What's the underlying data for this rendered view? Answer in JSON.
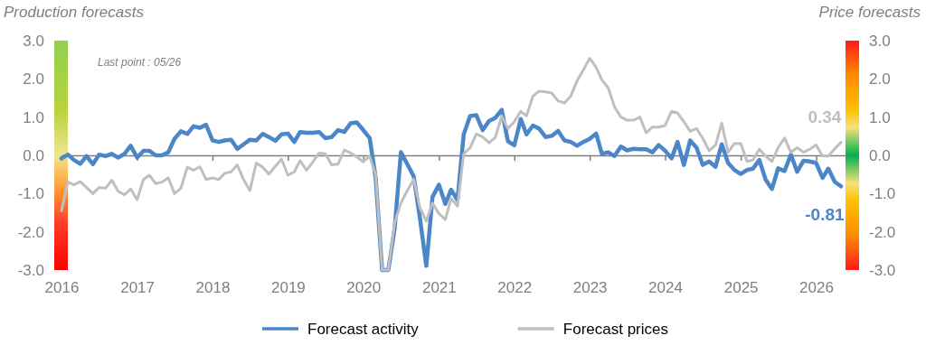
{
  "chart_data": {
    "type": "line",
    "ylabel": "Production forecasts",
    "y2label": "Price forecasts",
    "x": [
      "2016-01",
      "2016-02",
      "2016-03",
      "2016-04",
      "2016-05",
      "2016-06",
      "2016-07",
      "2016-08",
      "2016-09",
      "2016-10",
      "2016-11",
      "2016-12",
      "2017-01",
      "2017-02",
      "2017-03",
      "2017-04",
      "2017-05",
      "2017-06",
      "2017-07",
      "2017-08",
      "2017-09",
      "2017-10",
      "2017-11",
      "2017-12",
      "2018-01",
      "2018-02",
      "2018-03",
      "2018-04",
      "2018-05",
      "2018-06",
      "2018-07",
      "2018-08",
      "2018-09",
      "2018-10",
      "2018-11",
      "2018-12",
      "2019-01",
      "2019-02",
      "2019-03",
      "2019-04",
      "2019-05",
      "2019-06",
      "2019-07",
      "2019-08",
      "2019-09",
      "2019-10",
      "2019-11",
      "2019-12",
      "2020-01",
      "2020-02",
      "2020-03",
      "2020-04",
      "2020-05",
      "2020-06",
      "2020-07",
      "2020-08",
      "2020-09",
      "2020-10",
      "2020-11",
      "2020-12",
      "2021-01",
      "2021-02",
      "2021-03",
      "2021-04",
      "2021-05",
      "2021-06",
      "2021-07",
      "2021-08",
      "2021-09",
      "2021-10",
      "2021-11",
      "2021-12",
      "2022-01",
      "2022-02",
      "2022-03",
      "2022-04",
      "2022-05",
      "2022-06",
      "2022-07",
      "2022-08",
      "2022-09",
      "2022-10",
      "2022-11",
      "2022-12",
      "2023-01",
      "2023-02",
      "2023-03",
      "2023-04",
      "2023-05",
      "2023-06",
      "2023-07",
      "2023-08",
      "2023-09",
      "2023-10",
      "2023-11",
      "2023-12",
      "2024-01",
      "2024-02",
      "2024-03",
      "2024-04",
      "2024-05",
      "2024-06",
      "2024-07",
      "2024-08",
      "2024-09",
      "2024-10",
      "2024-11",
      "2024-12",
      "2025-01",
      "2025-02",
      "2025-03",
      "2025-04",
      "2025-05",
      "2025-06",
      "2025-07",
      "2025-08",
      "2025-09",
      "2025-10",
      "2025-11",
      "2025-12",
      "2026-01",
      "2026-02",
      "2026-03",
      "2026-04",
      "2026-05"
    ],
    "series": [
      {
        "name": "Forecast activity",
        "color": "#4a86c8",
        "values": [
          -0.08,
          0.02,
          -0.12,
          -0.22,
          -0.02,
          -0.23,
          0.02,
          -0.02,
          0.04,
          -0.06,
          0.04,
          0.25,
          -0.06,
          0.12,
          0.12,
          0.0,
          0.0,
          0.08,
          0.43,
          0.63,
          0.56,
          0.76,
          0.72,
          0.8,
          0.39,
          0.35,
          0.39,
          0.41,
          0.17,
          0.29,
          0.41,
          0.39,
          0.56,
          0.48,
          0.38,
          0.55,
          0.57,
          0.35,
          0.61,
          0.59,
          0.59,
          0.61,
          0.45,
          0.48,
          0.66,
          0.61,
          0.84,
          0.86,
          0.66,
          0.45,
          -0.6,
          -3.0,
          -3.0,
          -1.9,
          0.08,
          -0.23,
          -0.55,
          -1.64,
          -2.89,
          -1.09,
          -0.77,
          -1.27,
          -0.9,
          -1.17,
          0.55,
          1.03,
          1.05,
          0.66,
          0.9,
          0.98,
          1.19,
          0.37,
          0.26,
          0.95,
          0.55,
          0.78,
          0.7,
          0.48,
          0.51,
          0.64,
          0.39,
          0.35,
          0.25,
          0.35,
          0.43,
          0.57,
          0.04,
          0.08,
          -0.02,
          0.23,
          0.13,
          0.17,
          0.16,
          0.16,
          0.08,
          0.27,
          0.12,
          -0.08,
          0.35,
          -0.25,
          0.39,
          0.2,
          -0.25,
          -0.16,
          -0.3,
          0.29,
          -0.2,
          -0.38,
          -0.49,
          -0.38,
          -0.35,
          -0.12,
          -0.63,
          -0.88,
          -0.34,
          -0.41,
          0.02,
          -0.43,
          -0.14,
          -0.16,
          -0.2,
          -0.59,
          -0.35,
          -0.69,
          -0.81
        ]
      },
      {
        "name": "Forecast prices",
        "color": "#bfbfbf",
        "values": [
          -1.45,
          -0.7,
          -0.77,
          -0.69,
          -0.84,
          -1.0,
          -0.84,
          -0.86,
          -0.65,
          -0.94,
          -1.03,
          -0.88,
          -1.16,
          -0.63,
          -0.52,
          -0.74,
          -0.7,
          -0.59,
          -1.0,
          -0.86,
          -0.31,
          -0.39,
          -0.3,
          -0.63,
          -0.59,
          -0.63,
          -0.47,
          -0.43,
          -0.25,
          -0.64,
          -0.92,
          -0.2,
          -0.31,
          -0.49,
          -0.29,
          -0.1,
          -0.52,
          -0.43,
          -0.14,
          -0.39,
          -0.18,
          0.06,
          0.04,
          -0.25,
          -0.23,
          0.14,
          0.06,
          -0.04,
          -0.17,
          -0.02,
          -0.51,
          -3.0,
          -3.0,
          -1.76,
          -1.25,
          -0.92,
          -0.63,
          -1.37,
          -1.72,
          -1.25,
          -1.52,
          -1.68,
          -1.13,
          -1.33,
          0.04,
          0.2,
          0.56,
          0.48,
          0.33,
          0.47,
          1.03,
          0.7,
          0.88,
          1.15,
          1.03,
          1.55,
          1.68,
          1.66,
          1.63,
          1.42,
          1.37,
          1.55,
          1.95,
          2.23,
          2.54,
          2.3,
          1.97,
          1.76,
          1.27,
          1.0,
          0.92,
          0.92,
          1.0,
          0.59,
          0.74,
          0.74,
          0.78,
          1.15,
          1.11,
          0.88,
          0.63,
          0.7,
          0.45,
          0.12,
          0.27,
          0.84,
          0.08,
          0.31,
          0.31,
          -0.16,
          -0.12,
          0.16,
          -0.02,
          -0.16,
          0.2,
          0.45,
          0.08,
          0.2,
          0.08,
          0.16,
          0.27,
          -0.02,
          -0.02,
          0.17,
          0.34
        ]
      }
    ],
    "xlim": [
      "2016-01",
      "2026-06"
    ],
    "xticks": [
      "2016",
      "2017",
      "2018",
      "2019",
      "2020",
      "2021",
      "2022",
      "2023",
      "2024",
      "2025",
      "2026"
    ],
    "ylim": [
      -3,
      3
    ],
    "yticks": [
      {
        "value": -3,
        "label": "-3.0"
      },
      {
        "value": -2,
        "label": "-2.0"
      },
      {
        "value": -1,
        "label": "-1.0"
      },
      {
        "value": 0,
        "label": "0.0"
      },
      {
        "value": 1,
        "label": "1.0"
      },
      {
        "value": 2,
        "label": "2.0"
      },
      {
        "value": 3,
        "label": "3.0"
      }
    ],
    "y2lim": [
      -3,
      3
    ],
    "y2ticks": [
      {
        "value": -3,
        "label": "-3.0"
      },
      {
        "value": -2,
        "label": "-2.0"
      },
      {
        "value": -1,
        "label": "-1.0"
      },
      {
        "value": 0,
        "label": "0.0"
      },
      {
        "value": 1,
        "label": "1.0"
      },
      {
        "value": 2,
        "label": "2.0"
      },
      {
        "value": 3,
        "label": "3.0"
      }
    ],
    "annotations": [
      "Last point : 05/26",
      {
        "text": "0.34",
        "x": "2026-05",
        "y": 0.34
      },
      {
        "text": "-0.81",
        "x": "2026-05",
        "y": -0.81
      }
    ],
    "legend": "bottom",
    "marker": "none",
    "line_style": "solid"
  }
}
